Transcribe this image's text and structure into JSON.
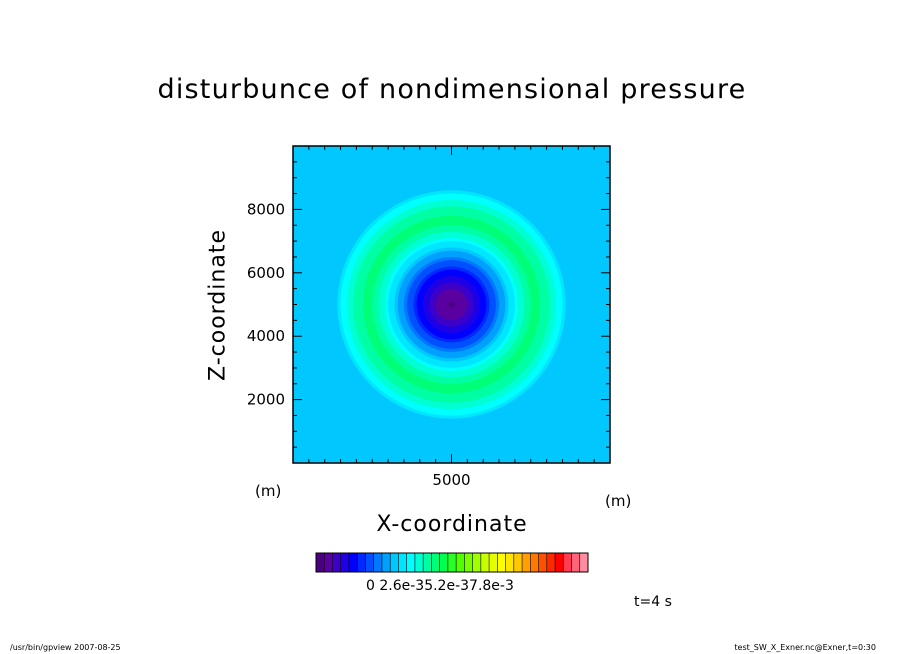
{
  "chart_data": {
    "type": "heatmap",
    "title": "disturbunce of nondimensional pressure",
    "xlabel": "X-coordinate",
    "ylabel": "Z-coordinate",
    "x_unit": "(m)",
    "y_unit": "(m)",
    "xlim": [
      0,
      10000
    ],
    "ylim": [
      0,
      10000
    ],
    "x_ticks": [
      5000
    ],
    "y_ticks": [
      2000,
      4000,
      6000,
      8000
    ],
    "field": {
      "center": [
        5000,
        5000
      ],
      "description_values": "radially symmetric disturbance; minimum at center, positive ring near r=2700 m",
      "radial_profile_r": [
        0,
        600,
        1000,
        1400,
        1800,
        2200,
        2700,
        3200,
        3600,
        4000,
        10000
      ],
      "radial_profile_level": [
        0.0,
        0.05,
        0.12,
        0.2,
        0.28,
        0.36,
        0.44,
        0.38,
        0.32,
        0.27,
        0.27
      ]
    },
    "colorbar": {
      "tick_labels": "0   2.6e-35.2e-37.8e-3",
      "colors": [
        "#4b0082",
        "#5a00a0",
        "#3c00c8",
        "#1e00e6",
        "#0000ff",
        "#0028ff",
        "#0050ff",
        "#0078ff",
        "#00a0ff",
        "#00c8ff",
        "#00e6ff",
        "#00ffff",
        "#00ffd2",
        "#00ffa5",
        "#00ff78",
        "#00ff50",
        "#28ff28",
        "#50ff00",
        "#78ff00",
        "#a0ff00",
        "#c8ff00",
        "#e6ff00",
        "#ffff00",
        "#ffe600",
        "#ffc800",
        "#ffa000",
        "#ff7800",
        "#ff5000",
        "#ff2800",
        "#ff0000",
        "#ff3c50",
        "#ff6478",
        "#ff8ca0"
      ]
    }
  },
  "time_label": "t=4 s",
  "footer_left": "/usr/bin/gpview   2007-08-25",
  "footer_right": "test_SW_X_Exner.nc@Exner,t=0:30"
}
